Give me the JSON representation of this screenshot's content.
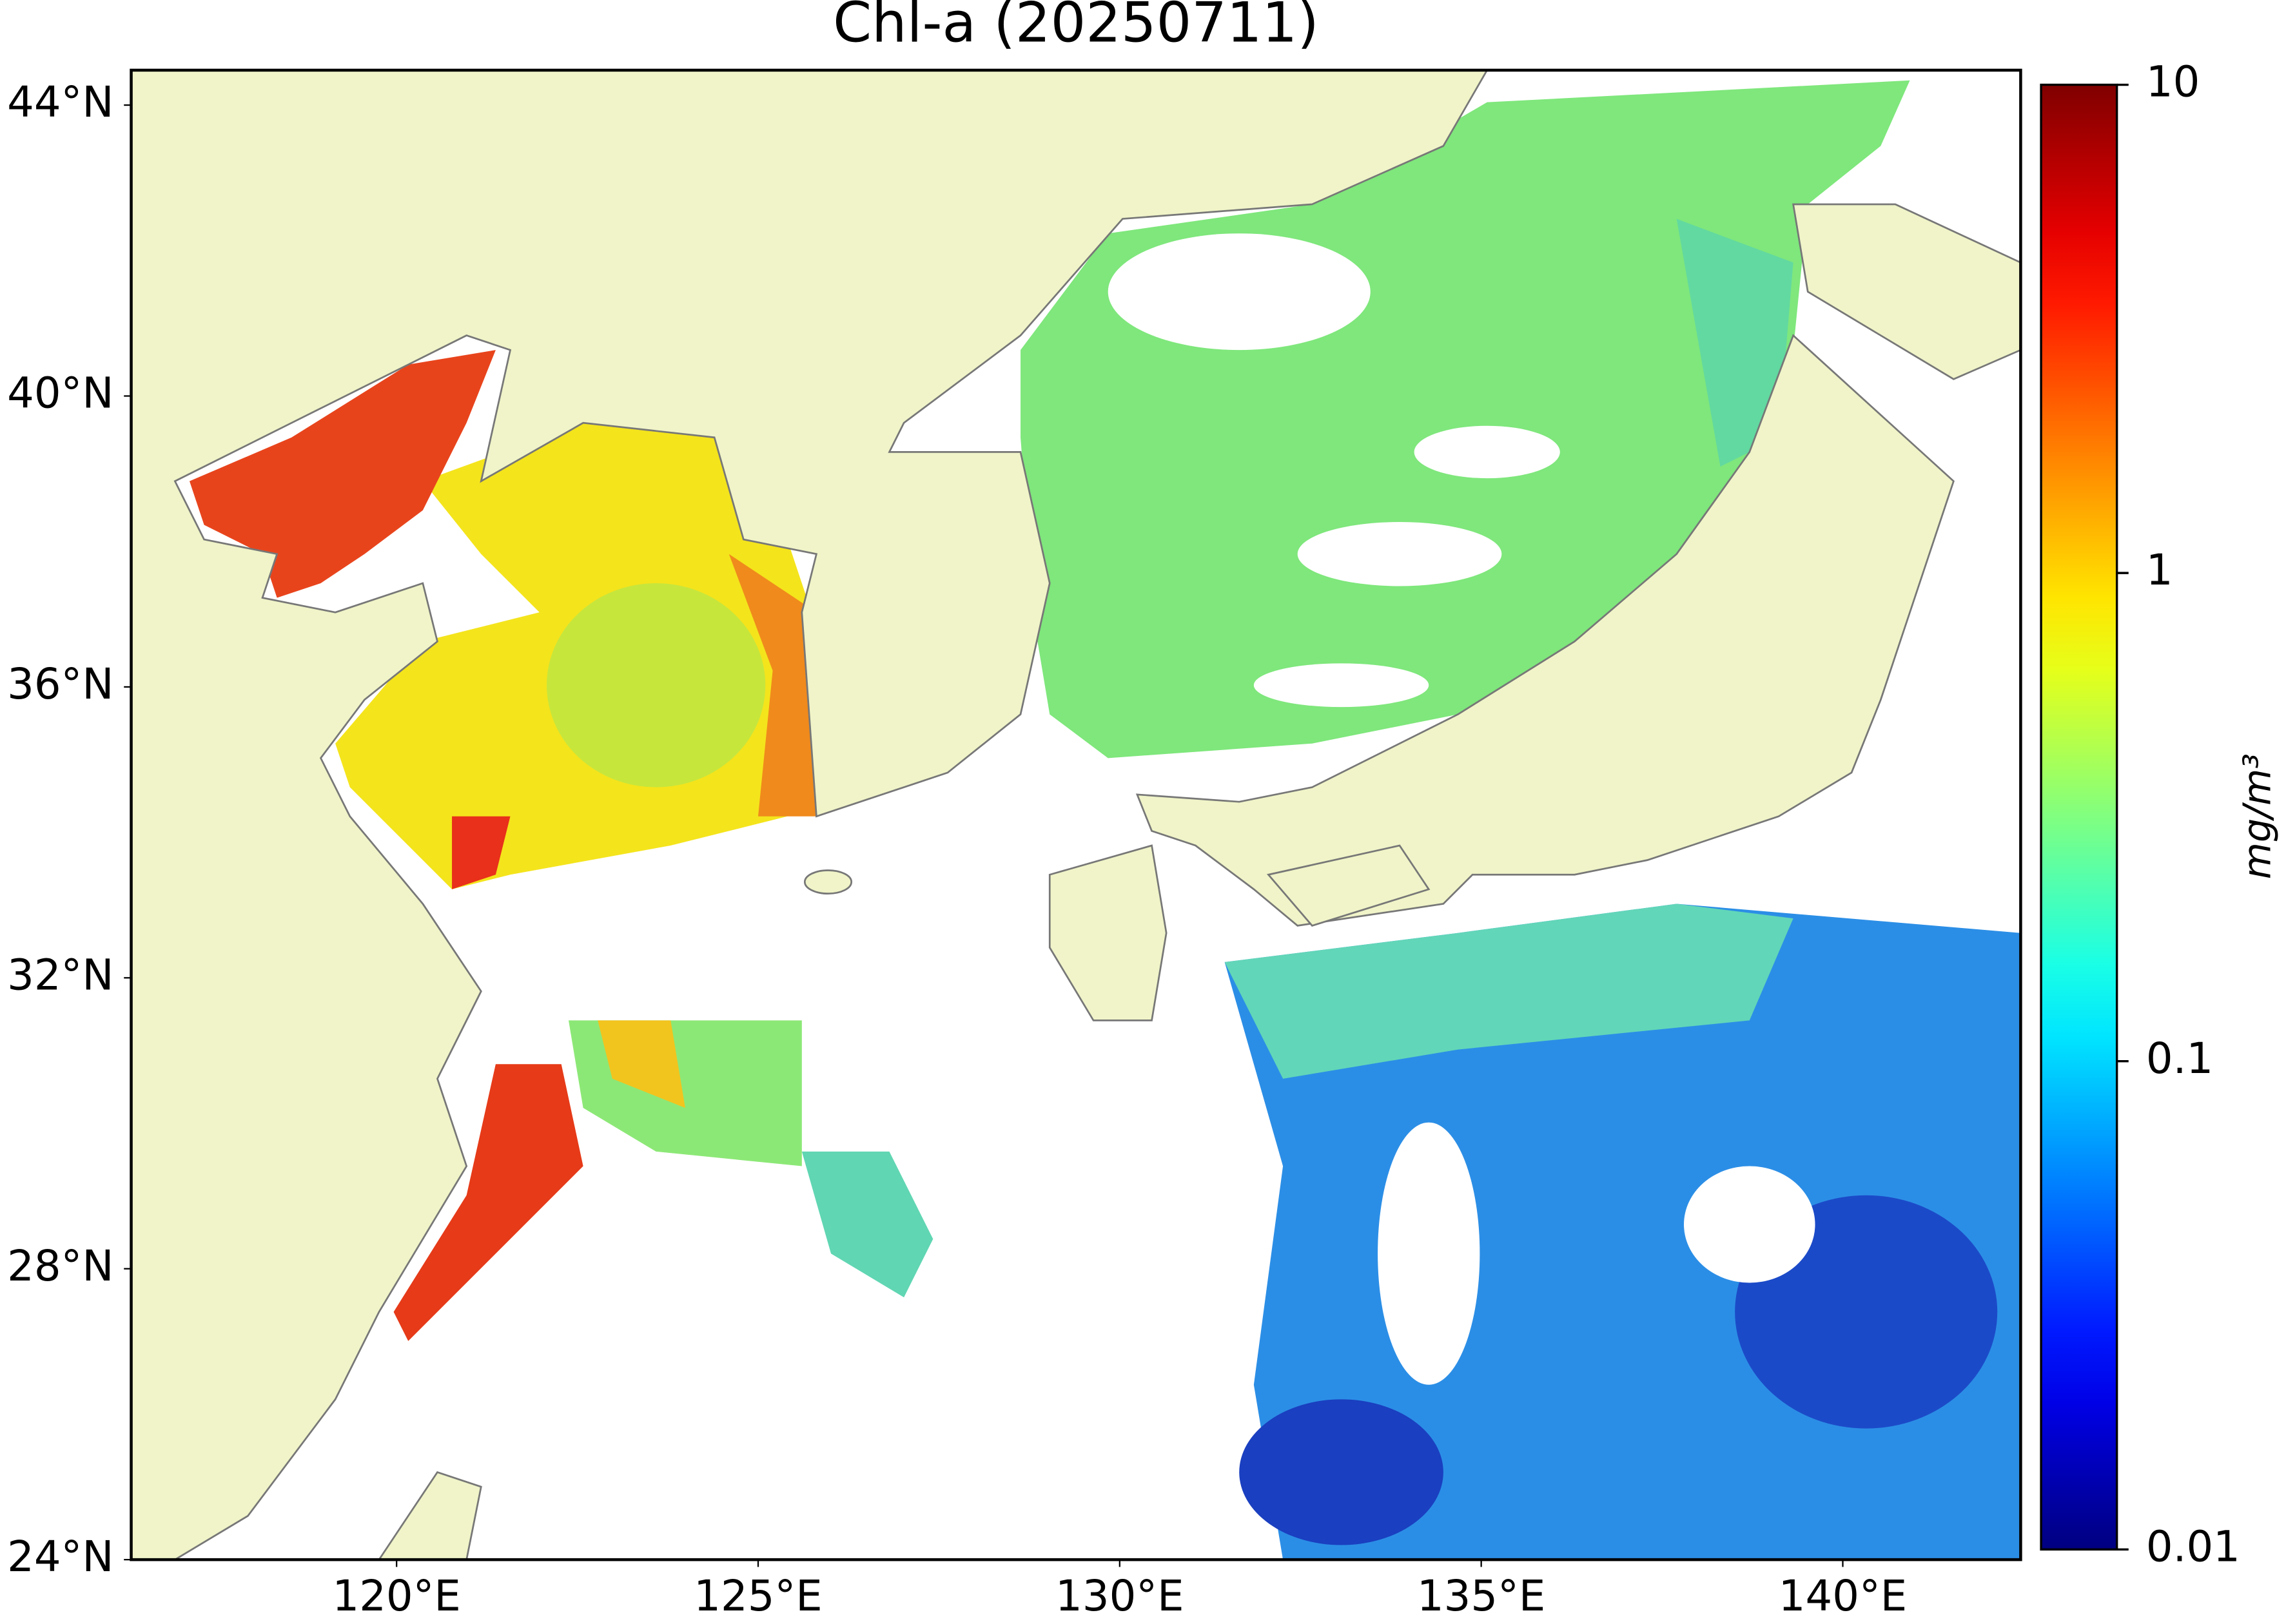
{
  "map": {
    "title": "Chl-a (20250711)",
    "xlim": [
      116.33,
      142.46
    ],
    "xticks": [
      {
        "value": 120,
        "label": "120°E"
      },
      {
        "value": 125,
        "label": "125°E"
      },
      {
        "value": 130,
        "label": "130°E"
      },
      {
        "value": 135,
        "label": "135°E"
      },
      {
        "value": 140,
        "label": "140°E"
      }
    ],
    "ylim": [
      24,
      44.48
    ],
    "yticks": [
      {
        "value": 24,
        "label": "24°N"
      },
      {
        "value": 28,
        "label": "28°N"
      },
      {
        "value": 32,
        "label": "32°N"
      },
      {
        "value": 36,
        "label": "36°N"
      },
      {
        "value": 40,
        "label": "40°N"
      },
      {
        "value": 44,
        "label": "44°N"
      }
    ],
    "colorbar": {
      "label": "mg/m³",
      "log": true,
      "colormap": "jet",
      "lim": [
        0.01,
        10
      ],
      "ticks": [
        {
          "value": 0.01,
          "label": "0.01"
        },
        {
          "value": 0.1,
          "label": "0.1"
        },
        1,
        10
      ]
    }
  }
}
